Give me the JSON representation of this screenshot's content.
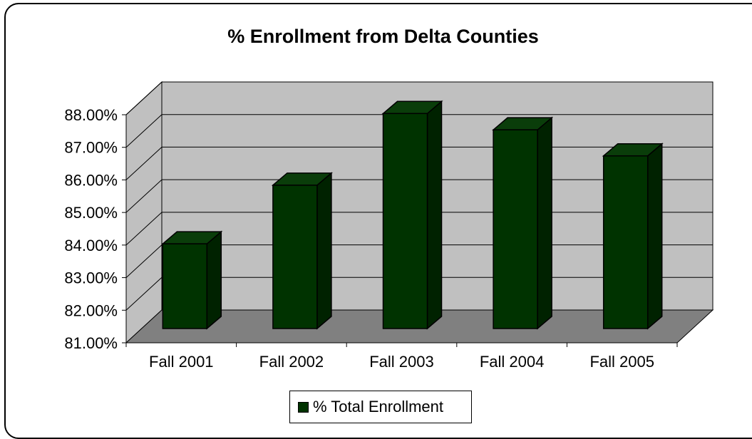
{
  "chart_data": {
    "type": "bar",
    "title": "% Enrollment from Delta Counties",
    "categories": [
      "Fall 2001",
      "Fall 2002",
      "Fall 2003",
      "Fall 2004",
      "Fall 2005"
    ],
    "series": [
      {
        "name": "% Total Enrollment",
        "values": [
          83.6,
          85.4,
          87.6,
          87.1,
          86.3
        ]
      }
    ],
    "ylim": [
      81,
      88
    ],
    "y_ticks": [
      "81.00%",
      "82.00%",
      "83.00%",
      "84.00%",
      "85.00%",
      "86.00%",
      "87.00%",
      "88.00%"
    ],
    "grid": true,
    "legend_position": "bottom",
    "colors": {
      "bar": "#003300",
      "wall": "#c0c0c0",
      "floor": "#808080"
    },
    "style": "3d-column"
  }
}
